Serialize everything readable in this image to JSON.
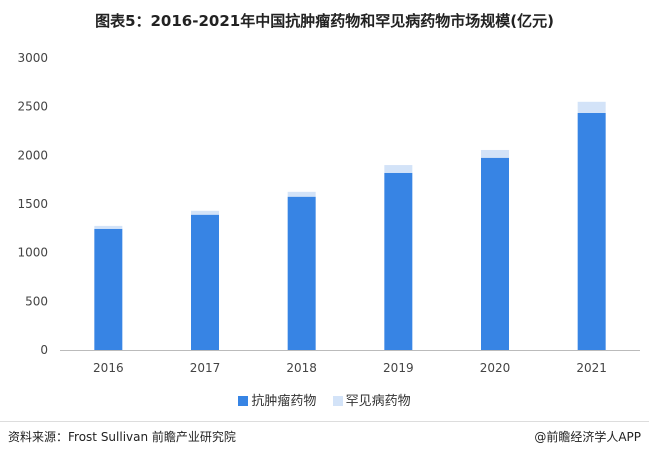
{
  "chart_data": {
    "type": "bar",
    "stacked": true,
    "title": "图表5：2016-2021年中国抗肿瘤药物和罕见病药物市场规模(亿元)",
    "categories": [
      "2016",
      "2017",
      "2018",
      "2019",
      "2020",
      "2021"
    ],
    "series": [
      {
        "name": "抗肿瘤药物",
        "values": [
          1245,
          1390,
          1575,
          1820,
          1975,
          2435
        ],
        "color": "#3784e4"
      },
      {
        "name": "罕见病药物",
        "values": [
          30,
          40,
          50,
          80,
          80,
          115
        ],
        "color": "#d3e3f8"
      }
    ],
    "ylim": [
      0,
      3000
    ],
    "yticks": [
      "0",
      "500",
      "1000",
      "1500",
      "2000",
      "2500",
      "3000"
    ],
    "grid": false,
    "legend": "bottom"
  },
  "footer": {
    "source": "资料来源：Frost Sullivan 前瞻产业研究院",
    "brand": "@前瞻经济学人APP"
  }
}
